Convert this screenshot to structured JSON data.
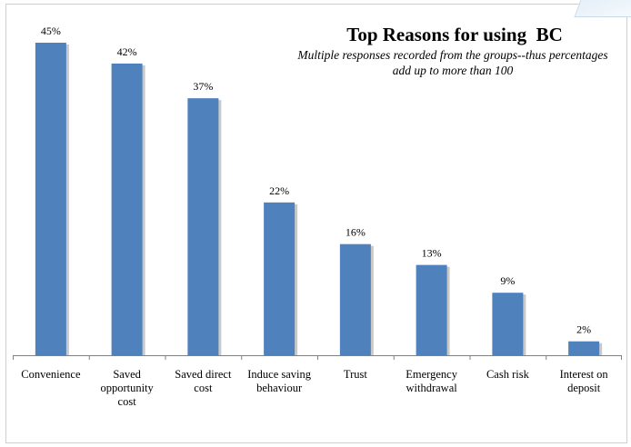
{
  "chart_data": {
    "type": "bar",
    "title": "Top Reasons for using  BC",
    "subtitle": "Multiple responses recorded from the groups--thus percentages add up to more than 100",
    "categories": [
      [
        "Convenience"
      ],
      [
        "Saved",
        "opportunity",
        "cost"
      ],
      [
        "Saved direct",
        "cost"
      ],
      [
        "Induce saving",
        "behaviour"
      ],
      [
        "Trust"
      ],
      [
        "Emergency",
        "withdrawal"
      ],
      [
        "Cash risk"
      ],
      [
        "Interest on",
        "deposit"
      ]
    ],
    "values": [
      45,
      42,
      37,
      22,
      16,
      13,
      9,
      2
    ],
    "value_labels": [
      "45%",
      "42%",
      "37%",
      "22%",
      "16%",
      "13%",
      "9%",
      "2%"
    ],
    "unit": "%",
    "ylim": [
      0,
      45
    ],
    "grid": false,
    "legend": "none",
    "colors": {
      "bar": "#4f81bd",
      "bar_shadow": "#c9c9c9",
      "axis": "#808080"
    }
  }
}
